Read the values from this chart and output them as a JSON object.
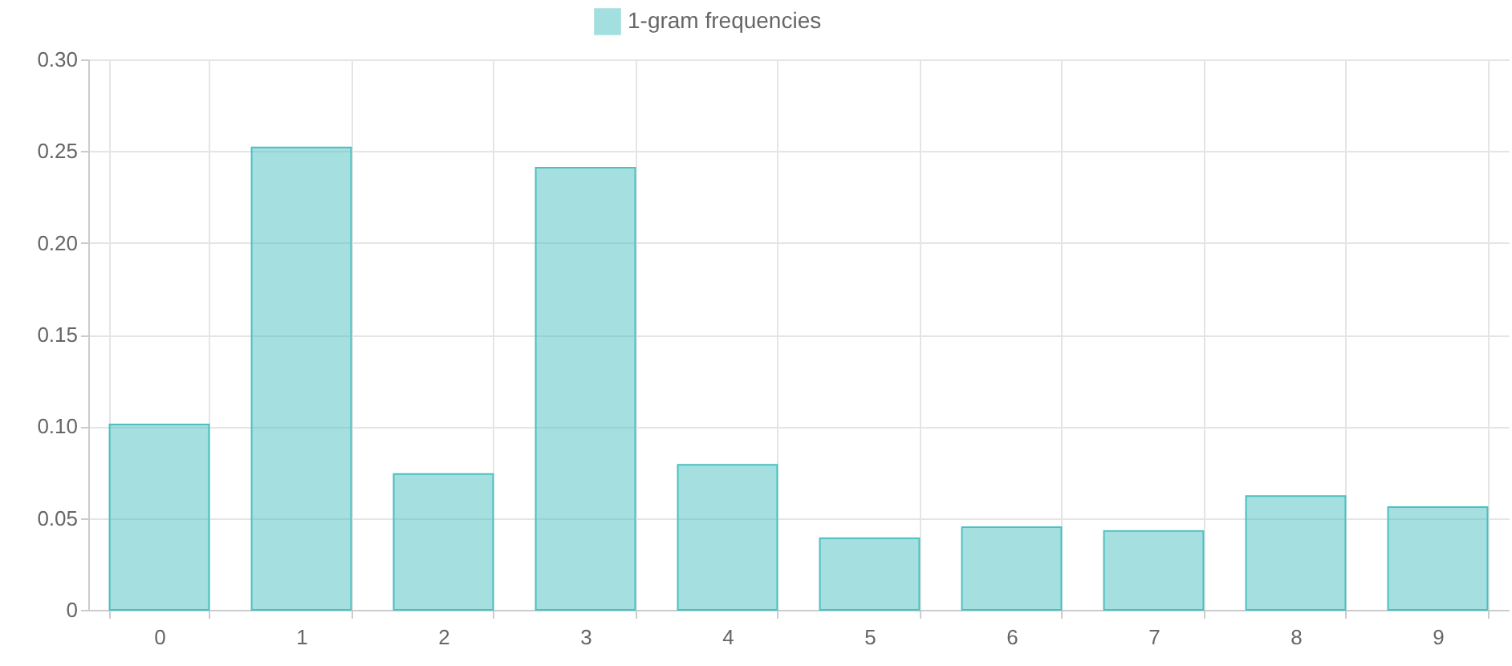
{
  "chart_data": {
    "type": "bar",
    "categories": [
      "0",
      "1",
      "2",
      "3",
      "4",
      "5",
      "6",
      "7",
      "8",
      "9"
    ],
    "series": [
      {
        "name": "1-gram frequencies",
        "color": "#4bc0c0",
        "values": [
          0.101,
          0.252,
          0.074,
          0.241,
          0.079,
          0.039,
          0.045,
          0.043,
          0.062,
          0.056
        ]
      }
    ],
    "ylim": [
      0,
      0.3
    ],
    "yticks": [
      0,
      0.05,
      {
        "value": 0.1,
        "label": "0.10"
      },
      0.15,
      {
        "value": 0.2,
        "label": "0.20"
      },
      0.25,
      {
        "value": 0.3,
        "label": "0.30"
      }
    ],
    "grid": true,
    "legend": "top"
  }
}
